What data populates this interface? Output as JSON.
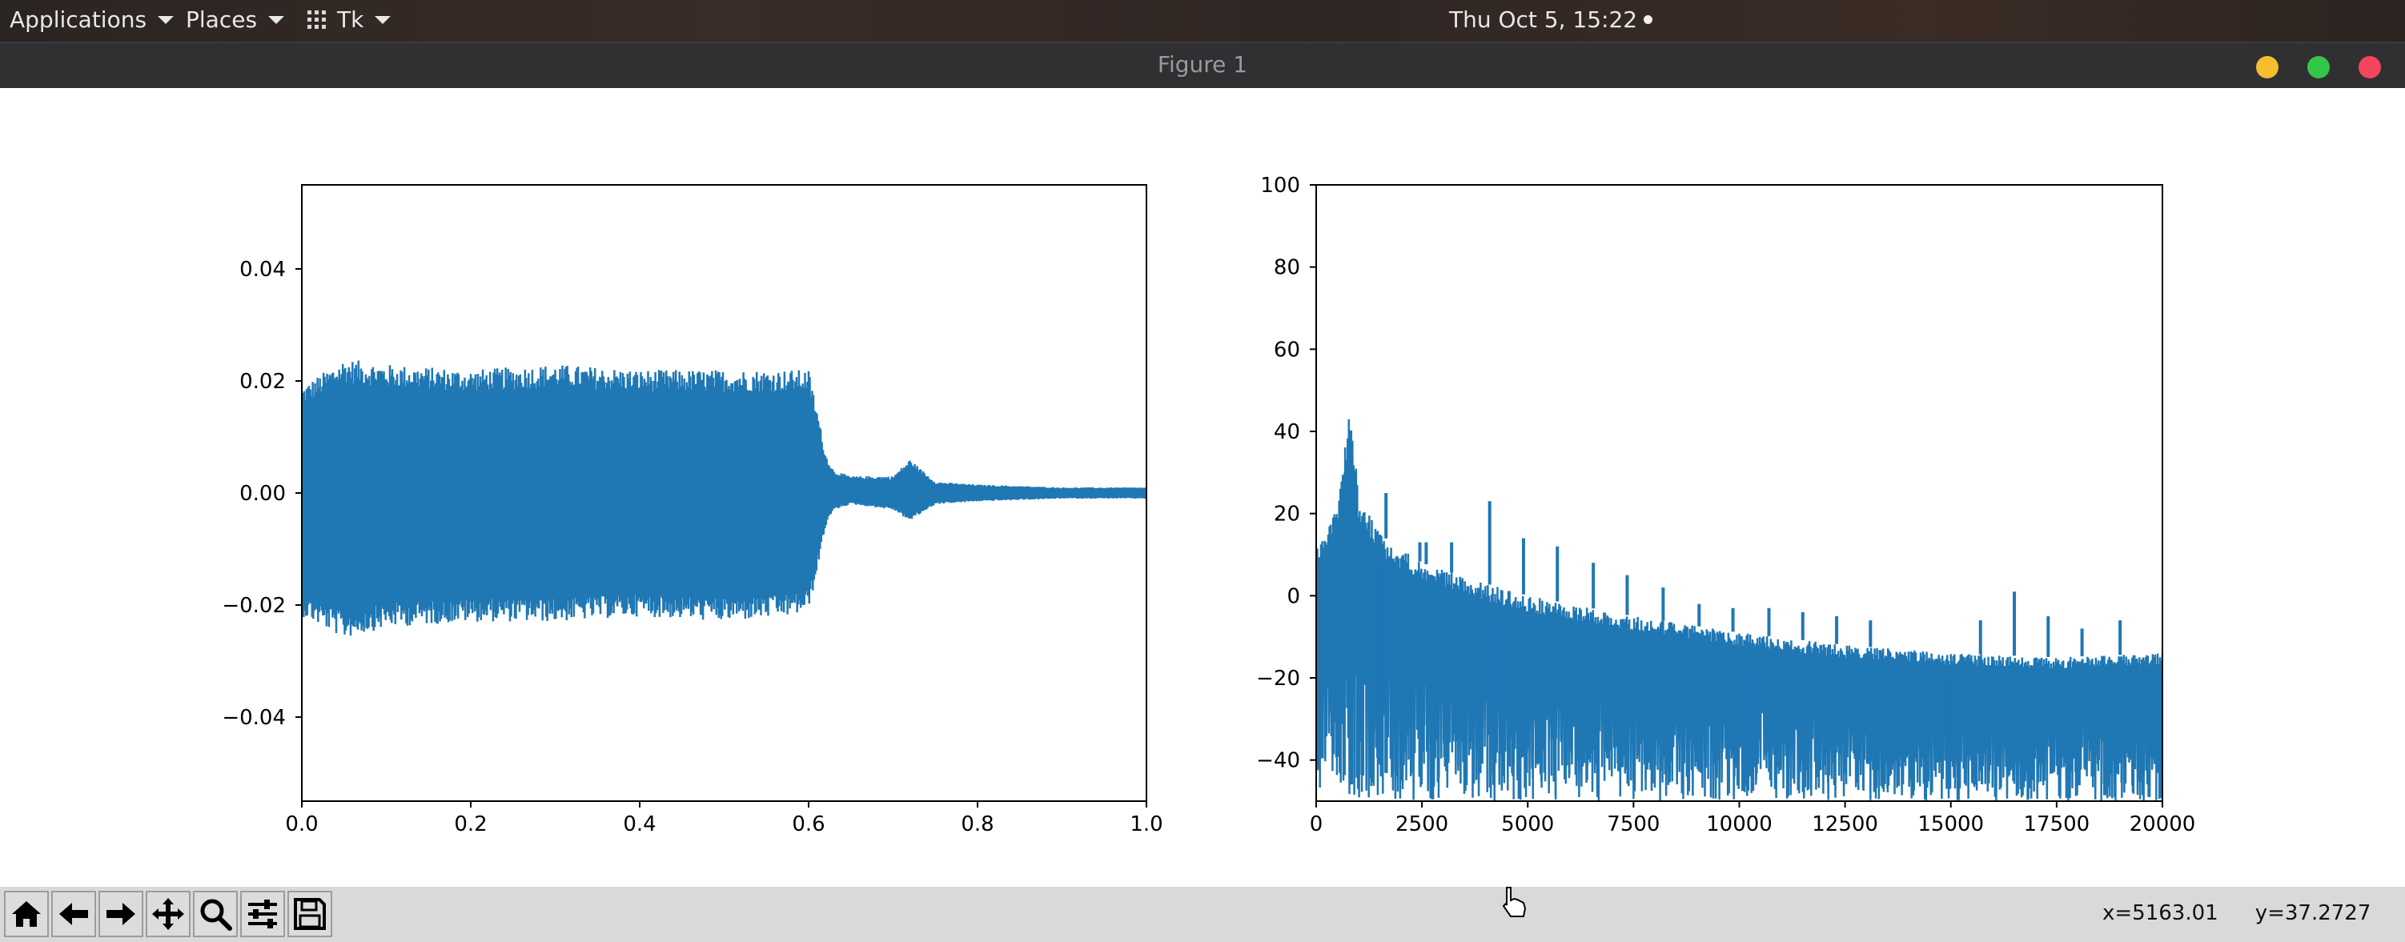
{
  "top_panel": {
    "applications_label": "Applications",
    "places_label": "Places",
    "app_menu_label": "Tk",
    "clock": "Thu Oct  5, 15:22"
  },
  "window": {
    "title": "Figure 1",
    "controls": [
      "minimize",
      "maximize",
      "close"
    ]
  },
  "toolbar": {
    "buttons": [
      "home-icon",
      "back-icon",
      "forward-icon",
      "pan-icon",
      "zoom-icon",
      "configure-subplots-icon",
      "save-icon"
    ],
    "x_readout": "x=5163.01",
    "y_readout": "y=37.2727"
  },
  "colors": {
    "series": "#1f77b4",
    "panel_bg": "#2a2422",
    "titlebar_bg": "#303033",
    "toolbar_bg": "#d9d9d9"
  },
  "chart_data": [
    {
      "type": "line",
      "xlim": [
        0.0,
        1.0
      ],
      "ylim": [
        -0.055,
        0.055
      ],
      "x_ticks": [
        "0.0",
        "0.2",
        "0.4",
        "0.6",
        "0.8",
        "1.0"
      ],
      "x_tick_values": [
        0.0,
        0.2,
        0.4,
        0.6,
        0.8,
        1.0
      ],
      "y_ticks": [
        "−0.04",
        "−0.02",
        "0.00",
        "0.02",
        "0.04"
      ],
      "y_tick_values": [
        -0.04,
        -0.02,
        0.0,
        0.02,
        0.04
      ],
      "envelope": {
        "x": [
          0.0,
          0.05,
          0.1,
          0.2,
          0.3,
          0.4,
          0.5,
          0.58,
          0.6,
          0.61,
          0.62,
          0.63,
          0.65,
          0.7,
          0.72,
          0.75,
          0.8,
          0.9,
          1.0
        ],
        "upper": [
          0.019,
          0.024,
          0.023,
          0.022,
          0.023,
          0.022,
          0.022,
          0.022,
          0.022,
          0.015,
          0.007,
          0.004,
          0.003,
          0.003,
          0.006,
          0.002,
          0.0015,
          0.001,
          0.001
        ],
        "lower": [
          -0.022,
          -0.026,
          -0.024,
          -0.023,
          -0.023,
          -0.022,
          -0.023,
          -0.022,
          -0.021,
          -0.014,
          -0.006,
          -0.003,
          -0.002,
          -0.003,
          -0.005,
          -0.002,
          -0.0015,
          -0.001,
          -0.001
        ]
      },
      "grid": false
    },
    {
      "type": "line",
      "xlim": [
        0,
        20000
      ],
      "ylim": [
        -50,
        100
      ],
      "x_ticks": [
        "0",
        "2500",
        "5000",
        "7500",
        "10000",
        "12500",
        "15000",
        "17500",
        "20000"
      ],
      "x_tick_values": [
        0,
        2500,
        5000,
        7500,
        10000,
        12500,
        15000,
        17500,
        20000
      ],
      "y_ticks": [
        "−40",
        "−20",
        "0",
        "20",
        "40",
        "60",
        "80",
        "100"
      ],
      "y_tick_values": [
        -40,
        -20,
        0,
        20,
        40,
        60,
        80,
        100
      ],
      "envelope": {
        "x": [
          0,
          500,
          800,
          1000,
          1500,
          2500,
          4000,
          5000,
          7500,
          10000,
          12500,
          15000,
          17500,
          20000
        ],
        "upper": [
          12,
          22,
          46,
          25,
          15,
          8,
          3,
          0,
          -5,
          -9,
          -12,
          -14,
          -15,
          -14
        ],
        "lower": [
          -50,
          -48,
          -50,
          -50,
          -50,
          -50,
          -50,
          -50,
          -50,
          -50,
          -50,
          -50,
          -50,
          -50
        ]
      },
      "peaks": {
        "x": [
          800,
          1650,
          2450,
          2600,
          3200,
          4100,
          4900,
          5700,
          6550,
          7350,
          8200,
          9050,
          9850,
          10700,
          11500,
          12300,
          13100,
          15700,
          16500,
          17300,
          18100,
          19000
        ],
        "y": [
          46,
          25,
          13,
          13,
          13,
          23,
          14,
          12,
          8,
          5,
          2,
          -2,
          -3,
          -3,
          -4,
          -5,
          -6,
          -6,
          1,
          -5,
          -8,
          -6
        ]
      },
      "grid": false
    }
  ]
}
